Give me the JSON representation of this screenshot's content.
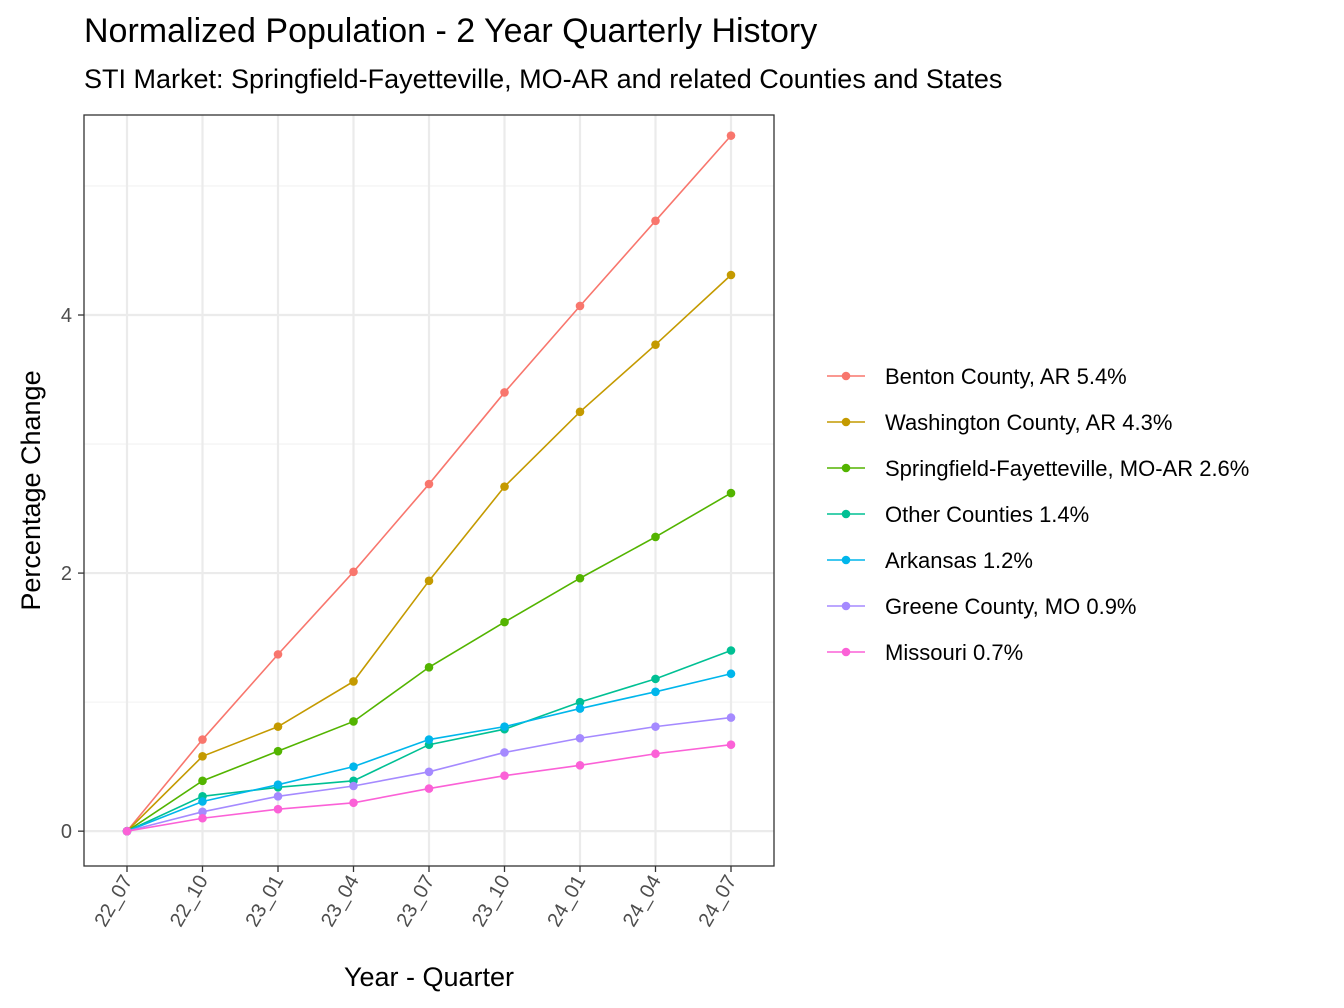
{
  "chart_data": {
    "type": "line",
    "title": "Normalized Population - 2 Year Quarterly History",
    "subtitle": "STI Market: Springfield-Fayetteville, MO-AR and related Counties and States",
    "xlabel": "Year - Quarter",
    "ylabel": "Percentage Change",
    "categories": [
      "22_07",
      "22_10",
      "23_01",
      "23_04",
      "23_07",
      "23_10",
      "24_01",
      "24_04",
      "24_07"
    ],
    "ylim": [
      -0.27,
      5.55
    ],
    "yticks": [
      0,
      2,
      4
    ],
    "grid": true,
    "legend_position": "right",
    "series": [
      {
        "name": "Benton County, AR 5.4%",
        "color": "#F8766D",
        "values": [
          0,
          0.71,
          1.37,
          2.01,
          2.69,
          3.4,
          4.07,
          4.73,
          5.39
        ]
      },
      {
        "name": "Washington County, AR 4.3%",
        "color": "#C49A00",
        "values": [
          0,
          0.58,
          0.81,
          1.16,
          1.94,
          2.67,
          3.25,
          3.77,
          4.31
        ]
      },
      {
        "name": "Springfield-Fayetteville, MO-AR 2.6%",
        "color": "#53B400",
        "values": [
          0,
          0.39,
          0.62,
          0.85,
          1.27,
          1.62,
          1.96,
          2.28,
          2.62
        ]
      },
      {
        "name": "Other Counties 1.4%",
        "color": "#00C094",
        "values": [
          0,
          0.27,
          0.34,
          0.39,
          0.67,
          0.79,
          1.0,
          1.18,
          1.4
        ]
      },
      {
        "name": "Arkansas 1.2%",
        "color": "#00B6EB",
        "values": [
          0,
          0.23,
          0.36,
          0.5,
          0.71,
          0.81,
          0.95,
          1.08,
          1.22
        ]
      },
      {
        "name": "Greene County, MO 0.9%",
        "color": "#A58AFF",
        "values": [
          0,
          0.15,
          0.27,
          0.35,
          0.46,
          0.61,
          0.72,
          0.81,
          0.88
        ]
      },
      {
        "name": "Missouri 0.7%",
        "color": "#FB61D7",
        "values": [
          0,
          0.1,
          0.17,
          0.22,
          0.33,
          0.43,
          0.51,
          0.6,
          0.67
        ]
      }
    ]
  }
}
